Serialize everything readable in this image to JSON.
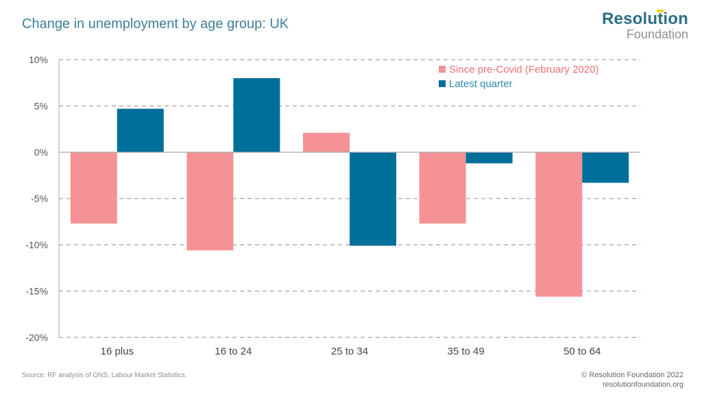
{
  "header": {
    "title": "Change in unemployment by age group: UK",
    "logo_line1": "Resolution",
    "logo_line2": "Foundation"
  },
  "footer": {
    "source": "Source: RF analysis of ONS, Labour Market Statistics.",
    "copyright": "© Resolution Foundation 2022",
    "website": "resolutionfoundation.org"
  },
  "colors": {
    "since_pre_covid": "#f49295",
    "latest_quarter": "#00709b",
    "title": "#3e7f9a"
  },
  "chart_data": {
    "type": "bar",
    "title": "Change in unemployment by age group: UK",
    "xlabel": "",
    "ylabel": "",
    "categories": [
      "16 plus",
      "16 to 24",
      "25 to 34",
      "35 to 49",
      "50 to 64"
    ],
    "series": [
      {
        "name": "Since pre-Covid (February 2020)",
        "color": "#f49295",
        "values": [
          -7.7,
          -10.6,
          2.1,
          -7.7,
          -15.6
        ]
      },
      {
        "name": "Latest quarter",
        "color": "#00709b",
        "values": [
          4.7,
          8.0,
          -10.1,
          -1.2,
          -3.3
        ]
      }
    ],
    "ylim": [
      -20,
      10
    ],
    "yticks": [
      10,
      5,
      0,
      -5,
      -10,
      -15,
      -20
    ],
    "ytick_labels": [
      "10%",
      "5%",
      "0%",
      "-5%",
      "-10%",
      "-15%",
      "-20%"
    ],
    "grid": true,
    "legend_position": "top-right"
  }
}
